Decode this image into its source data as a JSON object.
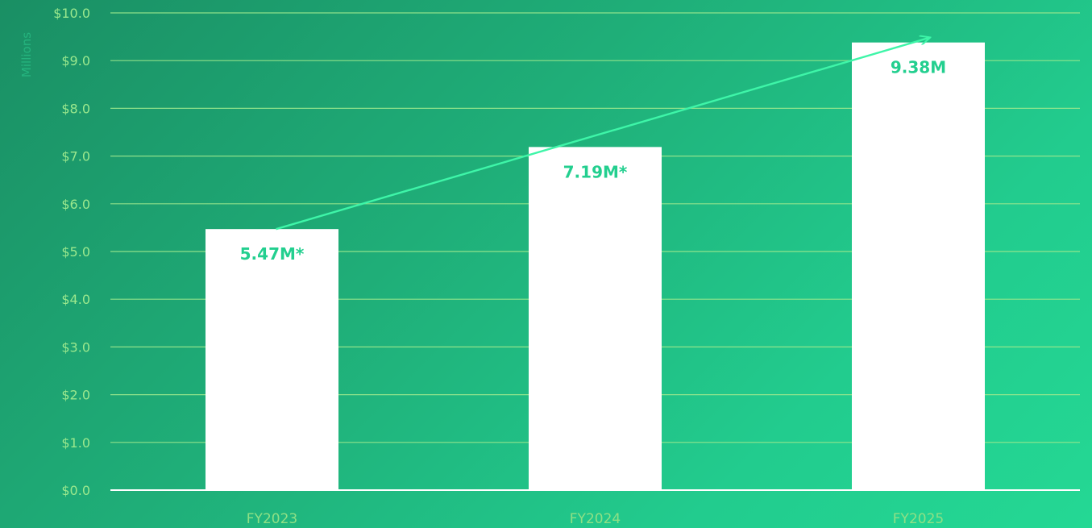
{
  "chart_data": {
    "type": "bar",
    "title": "",
    "xlabel": "",
    "ylabel": "Millions",
    "ylim": [
      0,
      10
    ],
    "y_ticks": [
      "$0.0",
      "$1.0",
      "$2.0",
      "$3.0",
      "$4.0",
      "$5.0",
      "$6.0",
      "$7.0",
      "$8.0",
      "$9.0",
      "$10.0"
    ],
    "categories": [
      "FY2023",
      "FY2024",
      "FY2025"
    ],
    "values": [
      5.47,
      7.19,
      9.38
    ],
    "data_labels": [
      "5.47M*",
      "7.19M*",
      "9.38M"
    ],
    "trend_arrow": true,
    "grid": true,
    "legend": "none",
    "colors": {
      "bar": "#ffffff",
      "grid": "#9be88d",
      "axis": "#ffffff",
      "tick_text": "#9be88d",
      "data_label": "#23cf8f",
      "trend": "#3ef5a8"
    }
  }
}
